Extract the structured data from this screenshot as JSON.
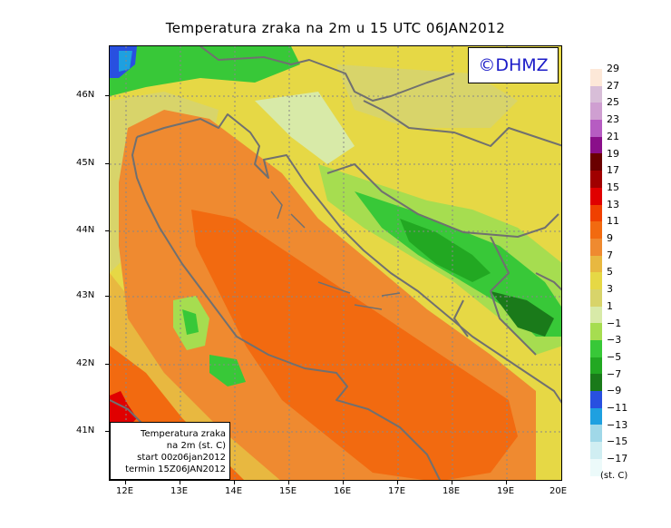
{
  "title": "Temperatura zraka na 2m u 15 UTC 06JAN2012",
  "copyright": "©DHMZ",
  "info": {
    "line1": "Temperatura zraka",
    "line2": "na 2m (st. C)",
    "line3": "start 00z06jan2012",
    "line4": "termin 15Z06JAN2012"
  },
  "lat_labels": [
    "46N",
    "45N",
    "44N",
    "43N",
    "42N",
    "41N"
  ],
  "lon_labels": [
    "12E",
    "13E",
    "14E",
    "15E",
    "16E",
    "17E",
    "18E",
    "19E",
    "20E"
  ],
  "legend": {
    "labels": [
      "29",
      "27",
      "25",
      "23",
      "21",
      "19",
      "17",
      "15",
      "13",
      "11",
      "9",
      "7",
      "5",
      "3",
      "1",
      "−1",
      "−3",
      "−5",
      "−7",
      "−9",
      "−11",
      "−13",
      "−15",
      "−17"
    ],
    "colors": [
      "#fde8d8",
      "#d8bed8",
      "#cf9fd1",
      "#b65cc2",
      "#8a0f8a",
      "#6a0000",
      "#a00000",
      "#e00000",
      "#f04000",
      "#f26a10",
      "#ef8a30",
      "#e8b840",
      "#e6d845",
      "#d8d46a",
      "#d8eaa8",
      "#a6dd50",
      "#38c838",
      "#22a822",
      "#1a7a1a",
      "#2850e0",
      "#1ea0e0",
      "#a0d8e8",
      "#d0eef2",
      "#ecfafa"
    ],
    "unit": "(st. C)"
  },
  "colors": {
    "sea_warm": "#f26a10",
    "sea_mid": "#ef8a30",
    "land_yellow": "#e6d845",
    "land_pale": "#d8d46a",
    "cold_green": "#38c838",
    "cold_dark": "#22a822",
    "cold_blue": "#2850e0",
    "red": "#e00000",
    "coast": "#707070",
    "copyright_text": "#1c1cc8"
  }
}
